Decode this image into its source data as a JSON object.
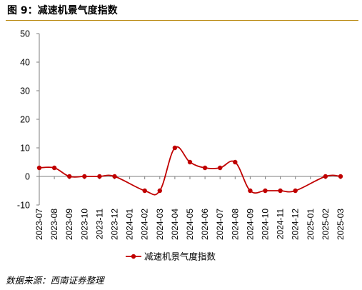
{
  "figure": {
    "title": "图 9：减速机景气度指数",
    "source": "数据来源：西南证券整理"
  },
  "chart_data": {
    "type": "line",
    "x": [
      "2023-07",
      "2023-08",
      "2023-09",
      "2023-10",
      "2023-11",
      "2023-12",
      "2024-01",
      "2024-02",
      "2024-03",
      "2024-04",
      "2024-05",
      "2024-06",
      "2024-07",
      "2024-08",
      "2024-09",
      "2024-10",
      "2024-11",
      "2024-12",
      "2025-01",
      "2025-02",
      "2025-03"
    ],
    "series": [
      {
        "name": "减速机景气度指数",
        "values": [
          3,
          3,
          0,
          0,
          0,
          0,
          null,
          -5,
          -5,
          10,
          5,
          3,
          3,
          5,
          -5,
          -5,
          -5,
          -5,
          null,
          0,
          0
        ],
        "color": "#c00000",
        "smooth": true
      }
    ],
    "ylim": [
      -10,
      50
    ],
    "yticks": [
      -10,
      0,
      10,
      20,
      30,
      40,
      50
    ],
    "legend": "bottom",
    "grid": false
  }
}
